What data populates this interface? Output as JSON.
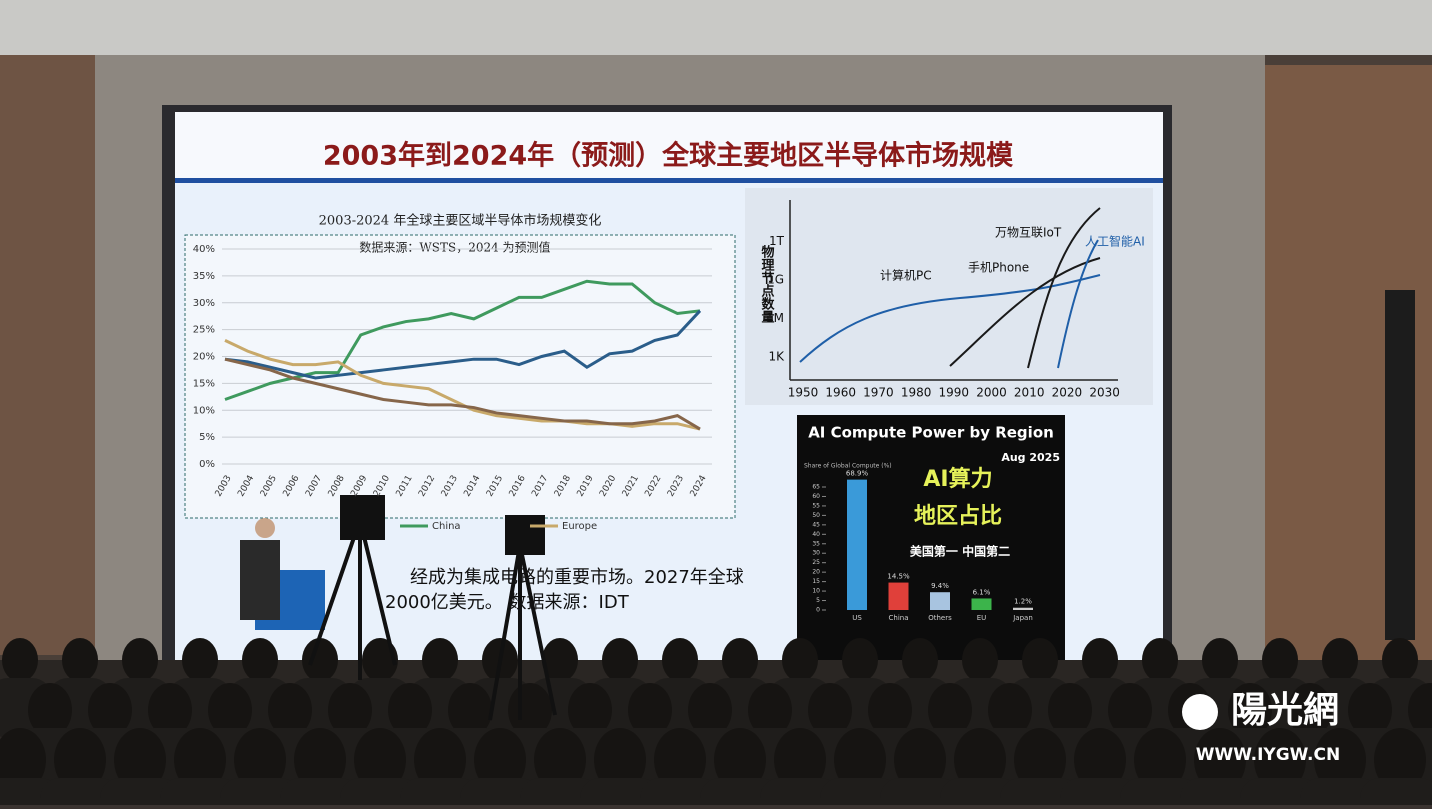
{
  "slide": {
    "title": "2003年到2024年（预测）全球主要地区半导体市场规模",
    "left_chart": {
      "title": "2003-2024 年全球主要区域半导体市场规模变化",
      "source": "数据来源：WSTS，2024 为预测值",
      "categories": [
        "2003",
        "2004",
        "2005",
        "2006",
        "2007",
        "2008",
        "2009",
        "2010",
        "2011",
        "2012",
        "2013",
        "2014",
        "2015",
        "2016",
        "2017",
        "2018",
        "2019",
        "2020",
        "2021",
        "2022",
        "2023",
        "2024"
      ],
      "ylim": [
        0,
        40
      ],
      "yticks": [
        {
          "value": 0,
          "label": "0%"
        },
        {
          "value": 5,
          "label": "5%"
        },
        {
          "value": 10,
          "label": "10%"
        },
        {
          "value": 15,
          "label": "15%"
        },
        {
          "value": 20,
          "label": "20%"
        },
        {
          "value": 25,
          "label": "25%"
        },
        {
          "value": 30,
          "label": "30%"
        },
        {
          "value": 35,
          "label": "35%"
        },
        {
          "value": 40,
          "label": "40%"
        }
      ],
      "series": [
        {
          "name": "China",
          "color": "#3f9a5e",
          "values": [
            12,
            13.5,
            15,
            16,
            17,
            17,
            24,
            25.5,
            26.5,
            27,
            28,
            27,
            29,
            31,
            31,
            32.5,
            34,
            33.5,
            33.5,
            30,
            28,
            28.5
          ]
        },
        {
          "color": "#2a5d8a",
          "values": [
            19.5,
            19,
            18,
            17,
            16,
            16.5,
            17,
            17.5,
            18,
            18.5,
            19,
            19.5,
            19.5,
            18.5,
            20,
            21,
            18,
            20.5,
            21,
            23,
            24,
            28.5
          ]
        },
        {
          "name": "Europe",
          "color": "#c8a96a",
          "values": [
            23,
            21,
            19.5,
            18.5,
            18.5,
            19,
            16.5,
            15,
            14.5,
            14,
            12,
            10,
            9,
            8.5,
            8,
            8,
            7.5,
            7.5,
            7,
            7.5,
            7.5,
            6.5
          ]
        },
        {
          "color": "#86664a",
          "values": [
            19.5,
            18.5,
            17.5,
            16,
            15,
            14,
            13,
            12,
            11.5,
            11,
            11,
            10.5,
            9.5,
            9,
            8.5,
            8,
            8,
            7.5,
            7.5,
            8,
            9,
            6.5
          ]
        }
      ]
    },
    "growth_chart": {
      "y_label": "物理节点数量",
      "yticks": [
        "1K",
        "1M",
        "1G",
        "1T"
      ],
      "xticks": [
        1950,
        1960,
        1970,
        1980,
        1990,
        2000,
        2010,
        2020,
        2030
      ],
      "curves": [
        "计算机PC",
        "手机Phone",
        "万物互联IoT",
        "人工智能AI"
      ]
    },
    "compute_chart": {
      "title": "AI Compute Power by Region",
      "date": "Aug 2025",
      "y_label": "Share of Global Compute (%)",
      "headline": [
        "AI算力",
        "地区占比",
        "美国第一 中国第二"
      ],
      "ylim": [
        0,
        65
      ],
      "yticks": [
        0,
        5,
        10,
        15,
        20,
        25,
        30,
        35,
        40,
        45,
        50,
        55,
        60,
        65
      ],
      "categories": [
        "US",
        "China",
        "Others",
        "EU",
        "Japan"
      ],
      "values": [
        68.9,
        14.5,
        9.4,
        6.1,
        1.2
      ],
      "value_labels": [
        "68.9%",
        "14.5%",
        "9.4%",
        "6.1%",
        "1.2%"
      ],
      "colors": [
        "#3a9ad9",
        "#e0403a",
        "#a8c4e0",
        "#3cb44b",
        "#cccccc"
      ]
    },
    "caption": [
      "经成为集成电路的重要市场。2027年全球",
      "2000亿美元。 数据来源：IDT"
    ]
  },
  "watermark": {
    "logo": "陽光網",
    "url": "WWW.IYGW.CN"
  }
}
